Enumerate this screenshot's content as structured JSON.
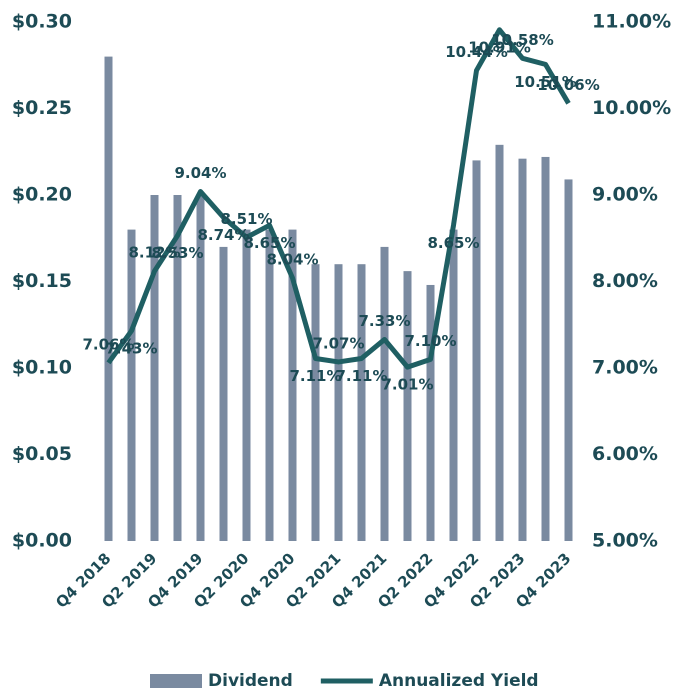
{
  "chart_data": {
    "type": "bar-line",
    "categories": [
      "Q4 2018",
      null,
      "Q2 2019",
      null,
      "Q4 2019",
      null,
      "Q2 2020",
      null,
      "Q4 2020",
      null,
      "Q2 2021",
      null,
      "Q4 2021",
      null,
      "Q2 2022",
      null,
      "Q4 2022",
      null,
      "Q2 2023",
      null,
      "Q4 2023"
    ],
    "series": [
      {
        "name": "Dividend",
        "type": "bar",
        "color": "#7a8aa0",
        "values": [
          0.28,
          0.18,
          0.2,
          0.2,
          0.2,
          0.17,
          0.18,
          0.18,
          0.18,
          0.16,
          0.16,
          0.16,
          0.17,
          0.156,
          0.148,
          0.18,
          0.22,
          0.229,
          0.221,
          0.222,
          0.209
        ]
      },
      {
        "name": "Annualized Yield",
        "type": "line",
        "axis": "y2",
        "color": "#1f5f63",
        "values": [
          7.06,
          7.43,
          8.12,
          8.53,
          9.04,
          8.74,
          8.51,
          8.65,
          8.04,
          7.11,
          7.07,
          7.11,
          7.33,
          7.01,
          7.1,
          8.65,
          10.44,
          10.91,
          10.58,
          10.51,
          10.06
        ],
        "value_labels": [
          "7.06%",
          "7.43%",
          "8.12%",
          "8.53%",
          "9.04%",
          "8.74%",
          "8.51%",
          "8.65%",
          "8.04%",
          "7.11%",
          "7.07%",
          "7.11%",
          "7.33%",
          "7.01%",
          "7.10%",
          "8.65%",
          "10.44%",
          "10.91%",
          "10.58%",
          "10.51%",
          "10.06%"
        ]
      }
    ],
    "ylim": [
      0,
      0.3
    ],
    "yticks": [
      {
        "value": 0,
        "label": "$0.00"
      },
      {
        "value": 0.05,
        "label": "$0.05"
      },
      {
        "value": 0.1,
        "label": "$0.10"
      },
      {
        "value": 0.15,
        "label": "$0.15"
      },
      {
        "value": 0.2,
        "label": "$0.20"
      },
      {
        "value": 0.25,
        "label": "$0.25"
      },
      {
        "value": 0.3,
        "label": "$0.30"
      }
    ],
    "y2lim": [
      5,
      11
    ],
    "y2ticks": [
      {
        "value": 5,
        "label": "5.00%"
      },
      {
        "value": 6,
        "label": "6.00%"
      },
      {
        "value": 7,
        "label": "7.00%"
      },
      {
        "value": 8,
        "label": "8.00%"
      },
      {
        "value": 9,
        "label": "9.00%"
      },
      {
        "value": 10,
        "label": "10.00%"
      },
      {
        "value": 11,
        "label": "11.00%"
      }
    ],
    "legend": "bottom"
  }
}
